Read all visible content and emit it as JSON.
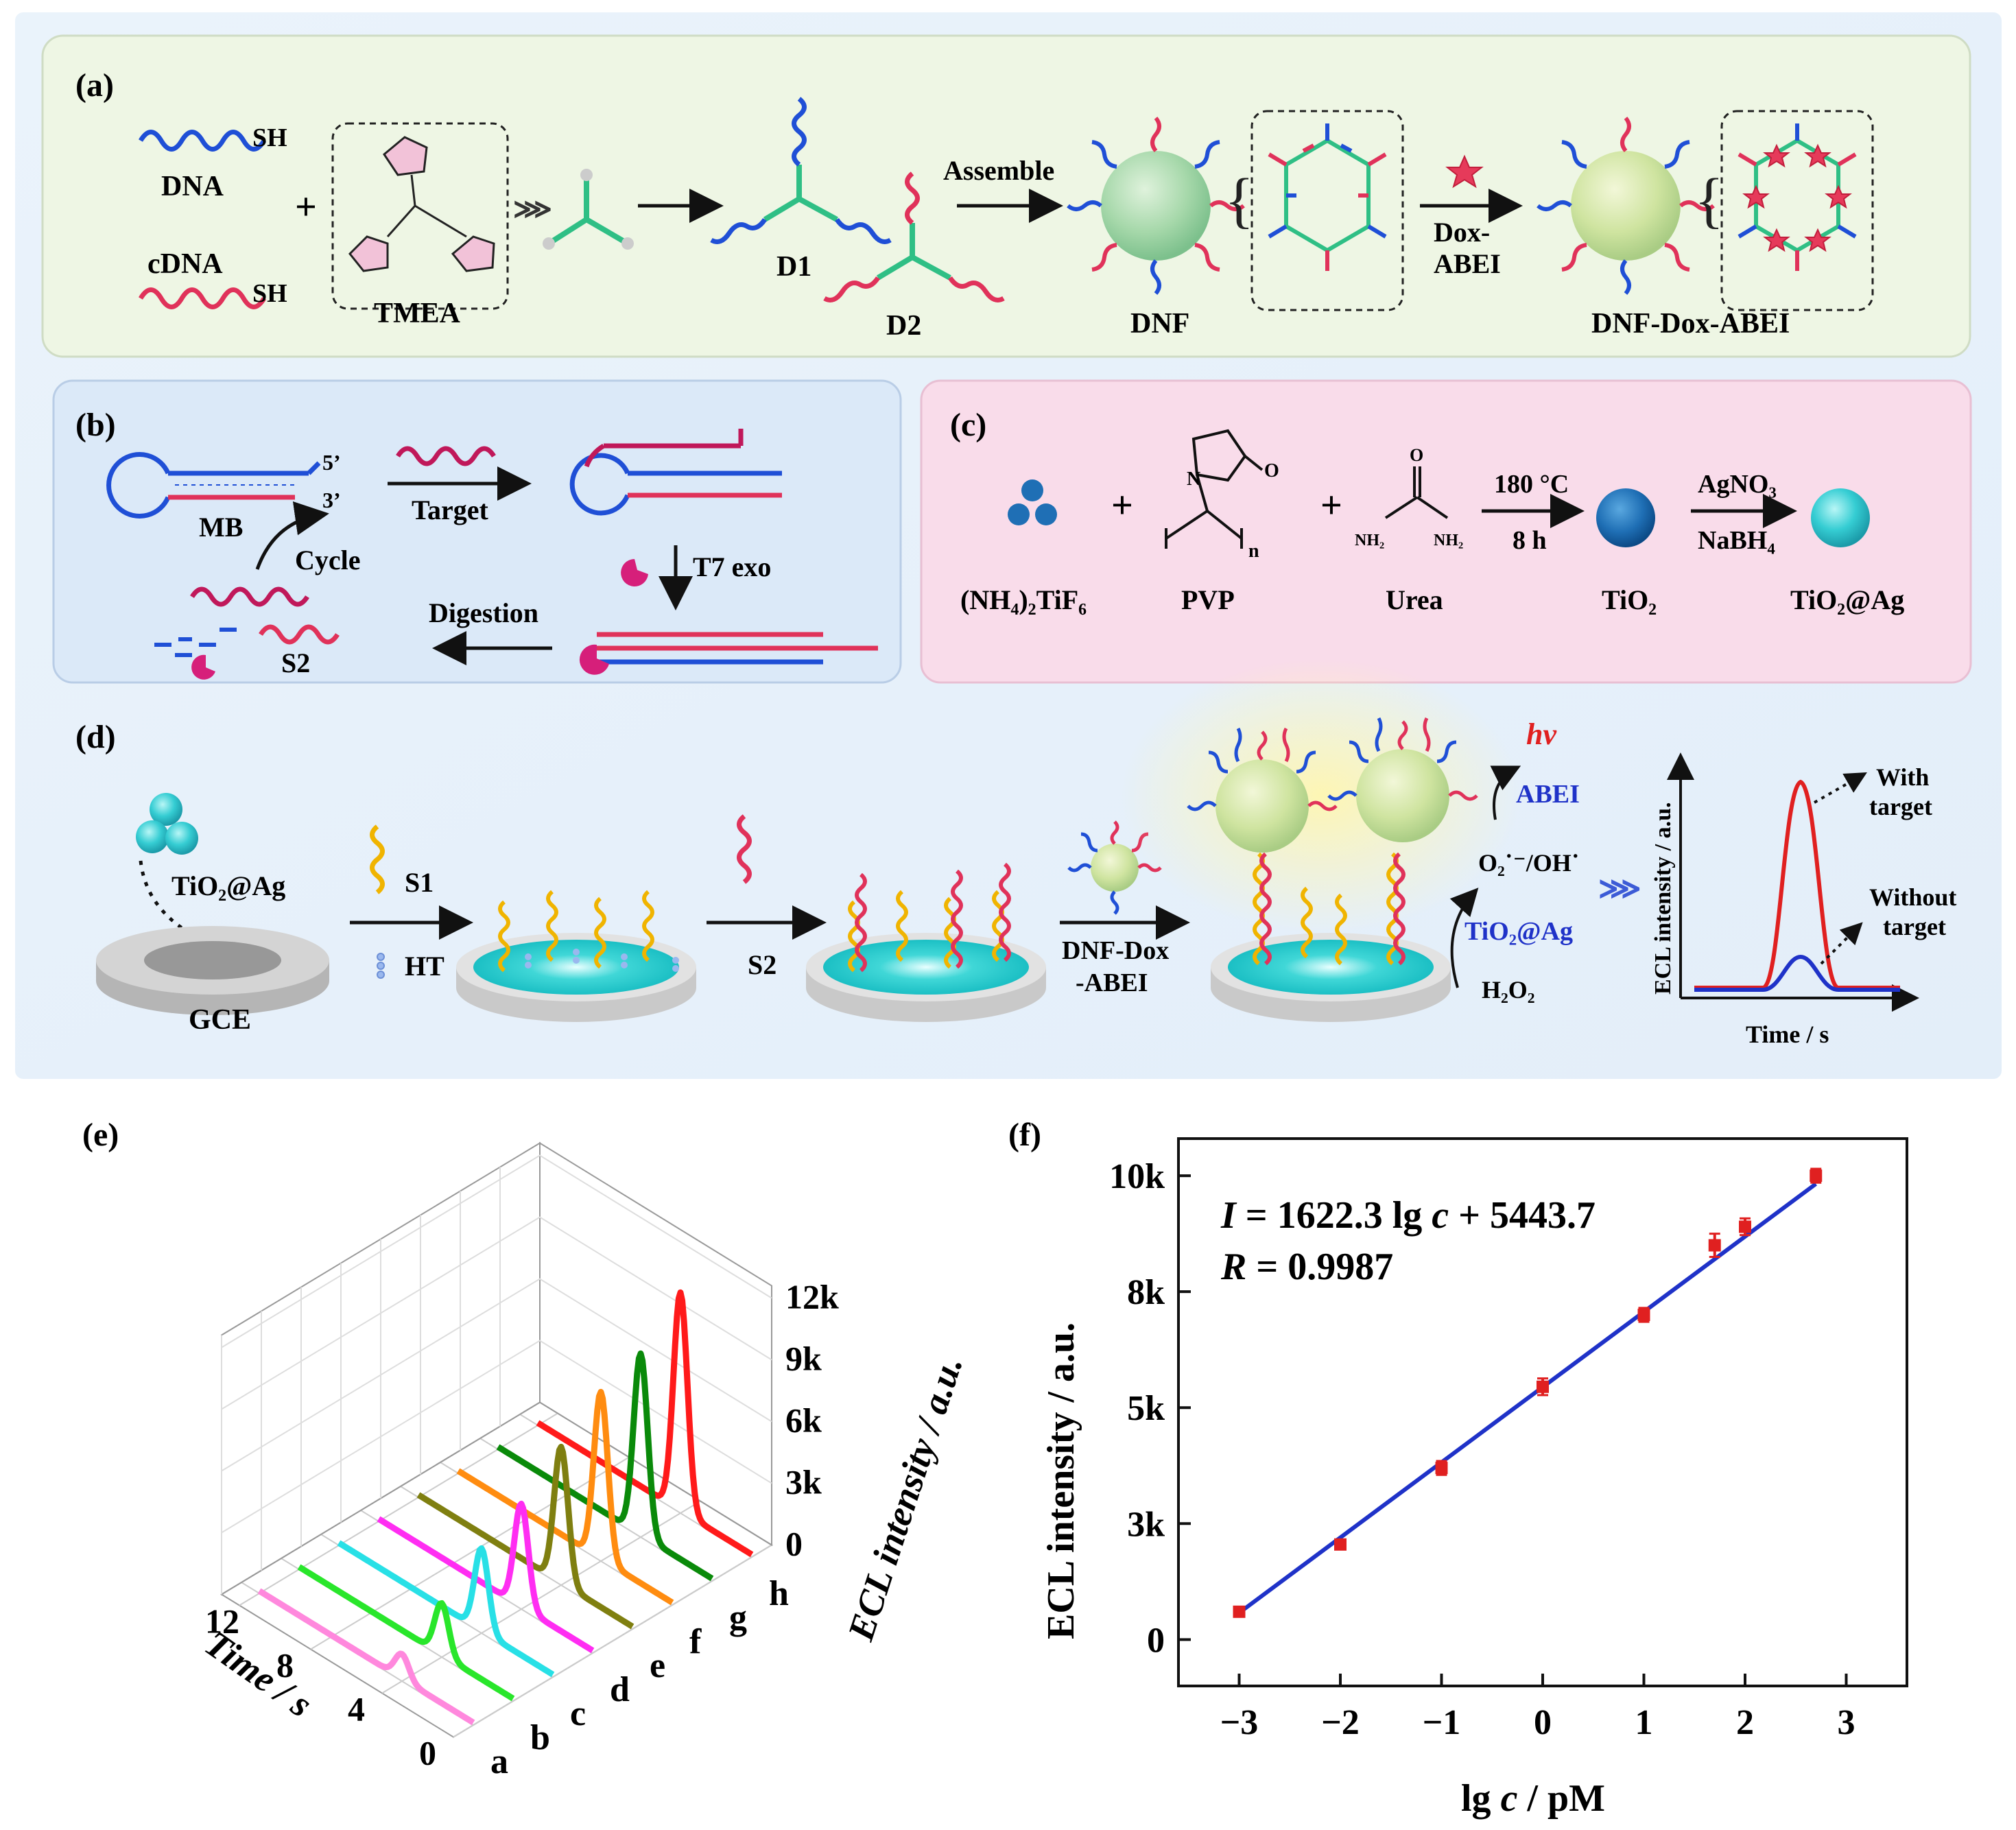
{
  "figure": {
    "panel_a": {
      "label": "(a)",
      "dna_label": "DNA",
      "cdna_label": "cDNA",
      "sh_label": "SH",
      "plus": "+",
      "tmea_label": "TMEA",
      "d1_label": "D1",
      "d2_label": "D2",
      "assemble_label": "Assemble",
      "dnf_label": "DNF",
      "dox_label_1": "Dox-",
      "dox_label_2": "ABEI",
      "dnf_dox_abei_label": "DNF-Dox-ABEI"
    },
    "panel_b": {
      "label": "(b)",
      "five_prime": "5’",
      "three_prime": "3’",
      "mb_label": "MB",
      "target_label": "Target",
      "cycle_label": "Cycle",
      "t7exo_label": "T7 exo",
      "digestion_label": "Digestion",
      "s2_label": "S2"
    },
    "panel_c": {
      "label": "(c)",
      "nh4_label": "(NH₄)₂TiF₆",
      "plus": "+",
      "pvp_label": "PVP",
      "urea_label": "Urea",
      "o_label": "O",
      "n_label": "N",
      "nh2_label": "NH₂",
      "n_sub": "n",
      "temp_label": "180 °C",
      "time_label": "8 h",
      "tio2_label": "TiO₂",
      "agno3_label": "AgNO₃",
      "nabh4_label": "NaBH₄",
      "tio2ag_label": "TiO₂@Ag"
    },
    "panel_d": {
      "label": "(d)",
      "tio2ag_label": "TiO₂@Ag",
      "gce_label": "GCE",
      "s1_label": "S1",
      "ht_label": "HT",
      "s2_label": "S2",
      "dnf_dox_1": "DNF-Dox",
      "dnf_dox_2": "-ABEI",
      "hv_label": "hν",
      "abei_label": "ABEI",
      "radical_label": "O₂˙⁻/OH˙",
      "tio2ag_cat_label": "TiO₂@Ag",
      "h2o2_label": "H₂O₂",
      "mini_ylabel": "ECL intensity / a.u.",
      "mini_xlabel": "Time / s",
      "with_target_1": "With",
      "with_target_2": "target",
      "without_target_1": "Without",
      "without_target_2": "target"
    }
  },
  "colors": {
    "panel_a_bg": "#eef6e4",
    "panel_b_bg": "#dbe9f8",
    "panel_c_bg": "#f9dcea",
    "panel_d_bg": "#e9f1fb",
    "dna_blue": "#1f4fd6",
    "cdna_red": "#e0325a",
    "s1_yellow": "#f0b400",
    "linker_green": "#2fbf85",
    "tio2": "#1f6fb5",
    "tio2ag": "#2cc6cf",
    "dnf_sphere": "#9fd8a8",
    "fit_line": "#1f32c8",
    "points": "#e02020"
  },
  "chart_data": [
    {
      "type": "line",
      "panel": "(e)",
      "title": "",
      "xlabel": "Time / s",
      "ylabel": "ECL intensity / a.u.",
      "x_ticks": [
        "0",
        "4",
        "8",
        "12"
      ],
      "z_ticks": [
        "0",
        "3k",
        "6k",
        "9k",
        "12k"
      ],
      "z_range": [
        0,
        12000
      ],
      "x_range": [
        0,
        12
      ],
      "series": [
        {
          "name": "a",
          "color": "#ff88dd",
          "peak": 1200
        },
        {
          "name": "b",
          "color": "#29e62b",
          "peak": 2500
        },
        {
          "name": "c",
          "color": "#28e0e6",
          "peak": 4000
        },
        {
          "name": "d",
          "color": "#ff2df2",
          "peak": 5000
        },
        {
          "name": "e",
          "color": "#7f7f10",
          "peak": 6600
        },
        {
          "name": "f",
          "color": "#ff8c10",
          "peak": 8100
        },
        {
          "name": "g",
          "color": "#0a8a0a",
          "peak": 8800
        },
        {
          "name": "h",
          "color": "#ff1a1a",
          "peak": 10600
        }
      ],
      "peak_time": 4
    },
    {
      "type": "scatter",
      "panel": "(f)",
      "title": "",
      "xlabel_pre": "lg ",
      "xlabel_var": "c",
      "xlabel_post": " / pM",
      "ylabel": "ECL intensity / a.u.",
      "xlim": [
        -3.6,
        3.6
      ],
      "ylim": [
        -1000,
        10800
      ],
      "x_ticks": [
        {
          "v": -3,
          "label": "−3"
        },
        {
          "v": -2,
          "label": "−2"
        },
        {
          "v": -1,
          "label": "−1"
        },
        {
          "v": 0,
          "label": "0"
        },
        {
          "v": 1,
          "label": "1"
        },
        {
          "v": 2,
          "label": "2"
        },
        {
          "v": 3,
          "label": "3"
        }
      ],
      "y_ticks": [
        {
          "v": 0,
          "label": "0"
        },
        {
          "v": 2500,
          "label": "3k"
        },
        {
          "v": 5000,
          "label": "5k"
        },
        {
          "v": 7500,
          "label": "8k"
        },
        {
          "v": 10000,
          "label": "10k"
        }
      ],
      "points": [
        {
          "x": -3,
          "y": 600,
          "err": 60
        },
        {
          "x": -2,
          "y": 2050,
          "err": 100
        },
        {
          "x": -1,
          "y": 3700,
          "err": 150
        },
        {
          "x": 0,
          "y": 5450,
          "err": 180
        },
        {
          "x": 1,
          "y": 7000,
          "err": 150
        },
        {
          "x": 1.7,
          "y": 8500,
          "err": 250
        },
        {
          "x": 2,
          "y": 8900,
          "err": 180
        },
        {
          "x": 2.7,
          "y": 10000,
          "err": 150
        }
      ],
      "fit": {
        "slope": 1622.3,
        "intercept": 5443.7,
        "x_from": -3,
        "x_to": 2.7
      },
      "equation_I": "I",
      "equation_mid": " = 1622.3 lg ",
      "equation_c": "c",
      "equation_tail": " + 5443.7",
      "r_var": "R",
      "r_value": " = 0.9987"
    }
  ]
}
